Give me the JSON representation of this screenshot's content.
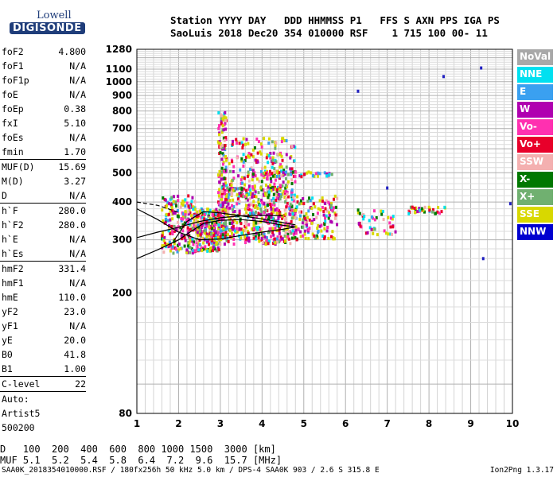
{
  "logo": {
    "top": "Lowell",
    "bottom": "DIGISONDE"
  },
  "header": {
    "line1": "Station YYYY DAY   DDD HHMMSS P1   FFS S AXN PPS IGA PS",
    "line2": "SaoLuis 2018 Dec20 354 010000 RSF    1 715 100 00- 11"
  },
  "params": [
    {
      "name": "foF2",
      "value": "4.800"
    },
    {
      "name": "foF1",
      "value": "N/A"
    },
    {
      "name": "foF1p",
      "value": "N/A"
    },
    {
      "name": "foE",
      "value": "N/A"
    },
    {
      "name": "foEp",
      "value": "0.38"
    },
    {
      "name": "fxI",
      "value": "5.10"
    },
    {
      "name": "foEs",
      "value": "N/A"
    },
    {
      "name": "fmin",
      "value": "1.70"
    },
    {
      "sep": true
    },
    {
      "name": "MUF(D)",
      "value": "15.69"
    },
    {
      "name": "M(D)",
      "value": "3.27"
    },
    {
      "name": "D",
      "value": "N/A"
    },
    {
      "sep": true
    },
    {
      "name": "h`F",
      "value": "280.0"
    },
    {
      "name": "h`F2",
      "value": "280.0"
    },
    {
      "name": "h`E",
      "value": "N/A"
    },
    {
      "name": "h`Es",
      "value": "N/A"
    },
    {
      "sep": true
    },
    {
      "name": "hmF2",
      "value": "331.4"
    },
    {
      "name": "hmF1",
      "value": "N/A"
    },
    {
      "name": "hmE",
      "value": "110.0"
    },
    {
      "name": "yF2",
      "value": "23.0"
    },
    {
      "name": "yF1",
      "value": "N/A"
    },
    {
      "name": "yE",
      "value": "20.0"
    },
    {
      "name": "B0",
      "value": "41.8"
    },
    {
      "name": "B1",
      "value": "1.00"
    },
    {
      "sep": true
    },
    {
      "name": "C-level",
      "value": "22"
    },
    {
      "sep": true
    }
  ],
  "autoscaling": [
    "Auto:",
    "Artist5",
    "500200"
  ],
  "legend": [
    {
      "label": "NoVal",
      "color": "#a8a8a8"
    },
    {
      "label": "NNE",
      "color": "#00e0f0"
    },
    {
      "label": "E",
      "color": "#3aa0f0"
    },
    {
      "label": "W",
      "color": "#b000b0"
    },
    {
      "label": "Vo-",
      "color": "#ff30b0"
    },
    {
      "label": "Vo+",
      "color": "#e8002a"
    },
    {
      "label": "SSW",
      "color": "#f4b0b0"
    },
    {
      "label": "X-",
      "color": "#007800"
    },
    {
      "label": "X+",
      "color": "#70b070"
    },
    {
      "label": "SSE",
      "color": "#d8d800"
    },
    {
      "label": "NNW",
      "color": "#0000d0"
    }
  ],
  "dmuf": {
    "d_label": "D",
    "d_values": [
      "100",
      "200",
      "400",
      "600",
      "800",
      "1000",
      "1500",
      "3000"
    ],
    "d_unit": "[km]",
    "muf_label": "MUF",
    "muf_values": [
      "5.1",
      "5.2",
      "5.4",
      "5.8",
      "6.4",
      "7.2",
      "9.6",
      "15.7"
    ],
    "muf_unit": "[MHz]"
  },
  "footer": "SAA0K_2018354010000.RSF / 180fx256h 50 kHz 5.0 km / DPS-4 SAA0K 903 / 2.6 S 315.8 E",
  "version": "Ion2Png 1.3.17",
  "chart_data": {
    "type": "scatter",
    "xlabel": "",
    "ylabel": "",
    "xlim": [
      1,
      10
    ],
    "ylim": [
      80,
      1280
    ],
    "y_scale": "log",
    "grid": true,
    "x_ticks": [
      1,
      2,
      3,
      4,
      5,
      6,
      7,
      8,
      9,
      10
    ],
    "y_ticks": [
      80,
      200,
      300,
      400,
      500,
      600,
      700,
      800,
      900,
      1000,
      1100,
      1280
    ],
    "clusters": [
      {
        "x": [
          1.6,
          2.4
        ],
        "y": [
          270,
          420
        ],
        "count": 220
      },
      {
        "x": [
          2.4,
          3.0
        ],
        "y": [
          275,
          380
        ],
        "count": 260
      },
      {
        "x": [
          2.95,
          3.15
        ],
        "y": [
          300,
          800
        ],
        "count": 160
      },
      {
        "x": [
          3.0,
          4.8
        ],
        "y": [
          290,
          450
        ],
        "count": 520
      },
      {
        "x": [
          3.2,
          4.8
        ],
        "y": [
          450,
          650
        ],
        "count": 170
      },
      {
        "x": [
          4.8,
          5.8
        ],
        "y": [
          300,
          420
        ],
        "count": 140
      },
      {
        "x": [
          3.6,
          5.7
        ],
        "y": [
          485,
          505
        ],
        "count": 70
      },
      {
        "x": [
          6.3,
          7.2
        ],
        "y": [
          310,
          380
        ],
        "count": 45
      },
      {
        "x": [
          7.5,
          8.4
        ],
        "y": [
          365,
          385
        ],
        "count": 35
      }
    ],
    "isolated": [
      {
        "x": 8.35,
        "y": 1040
      },
      {
        "x": 9.25,
        "y": 1110
      },
      {
        "x": 9.95,
        "y": 395
      },
      {
        "x": 6.3,
        "y": 930
      },
      {
        "x": 7.0,
        "y": 445
      },
      {
        "x": 9.3,
        "y": 260
      }
    ],
    "profile_curves": [
      {
        "name": "",
        "x": [
          1.0,
          1.5,
          2.0,
          2.3,
          2.6,
          3.0,
          3.5,
          4.0,
          4.5,
          4.8
        ],
        "y": [
          260,
          278,
          300,
          320,
          340,
          348,
          350,
          345,
          335,
          331
        ]
      },
      {
        "name": "",
        "x": [
          1.0,
          1.5,
          2.0,
          2.5,
          3.0,
          3.5,
          4.0,
          4.5
        ],
        "y": [
          305,
          318,
          330,
          345,
          355,
          360,
          362,
          360
        ]
      },
      {
        "name": "",
        "x": [
          1.0,
          1.5,
          2.0,
          2.5,
          3.0,
          3.5,
          4.0,
          4.5,
          4.8
        ],
        "y": [
          380,
          350,
          318,
          300,
          302,
          310,
          318,
          325,
          331
        ]
      },
      {
        "name": "",
        "x": [
          1.9,
          2.2,
          2.6,
          3.0,
          3.5,
          4.0,
          4.5,
          4.8
        ],
        "y": [
          300,
          345,
          372,
          368,
          360,
          352,
          342,
          336
        ]
      },
      {
        "name": "",
        "x": [
          1.0,
          1.5,
          2.0
        ],
        "y": [
          400,
          390,
          370
        ]
      }
    ]
  }
}
